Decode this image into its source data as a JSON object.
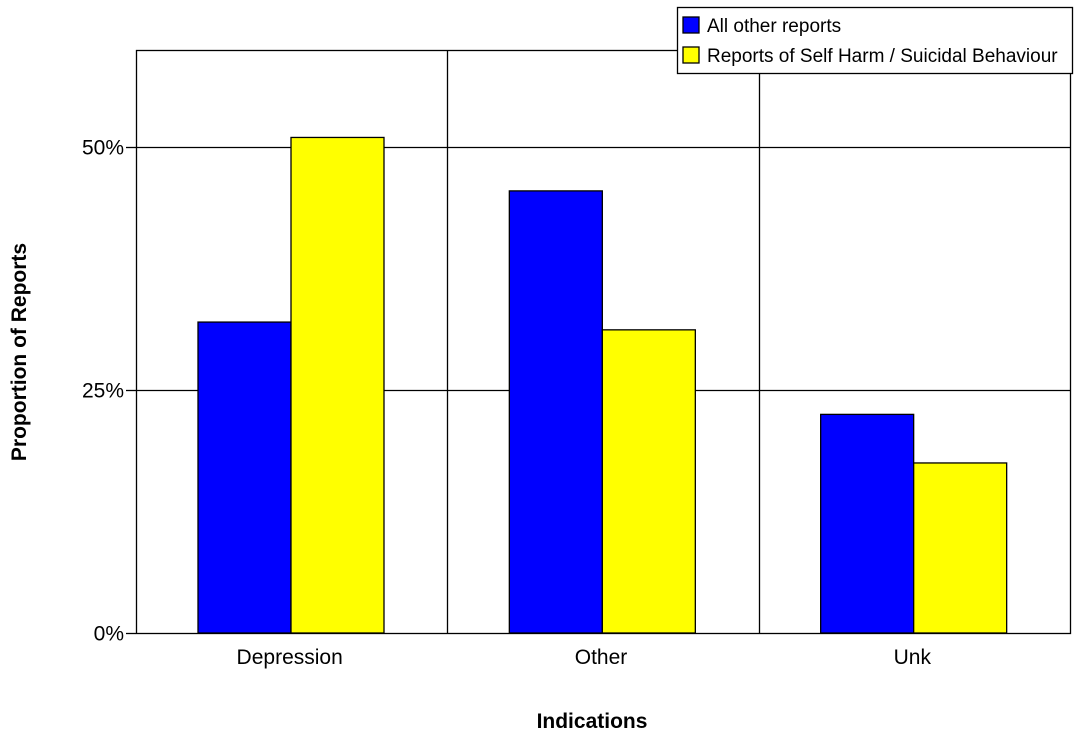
{
  "chart_data": {
    "type": "bar",
    "categories": [
      "Depression",
      "Other",
      "Unk"
    ],
    "series": [
      {
        "name": "All other reports",
        "values": [
          32,
          45.5,
          22.5
        ],
        "color": "#0000ff"
      },
      {
        "name": "Reports of Self Harm / Suicidal Behaviour",
        "values": [
          51,
          31.2,
          17.5
        ],
        "color": "#ffff00"
      }
    ],
    "xlabel": "Indications",
    "ylabel": "Proportion of Reports",
    "yticks": [
      0,
      25,
      50
    ],
    "ytick_labels": [
      "0%",
      "25%",
      "50%"
    ],
    "ylim": [
      0,
      60
    ],
    "grid": true,
    "legend_position": "top-right"
  }
}
